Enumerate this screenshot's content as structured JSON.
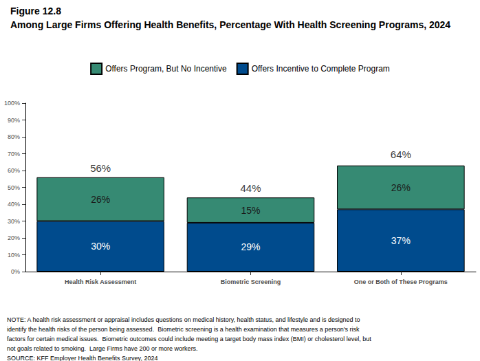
{
  "chart_data": {
    "type": "bar",
    "title": "Figure 12.8",
    "subtitle": "Among Large Firms Offering Health Benefits, Percentage With Health Screening Programs, 2024",
    "categories": [
      "Health Risk Assessment",
      "Biometric Screening",
      "One or Both of These Programs"
    ],
    "series": [
      {
        "name": "Offers Incentive to Complete Program",
        "color": "#004b8d",
        "values": [
          30,
          29,
          37
        ],
        "value_labels": [
          "30%",
          "29%",
          "37%"
        ]
      },
      {
        "name": "Offers Program, But No Incentive",
        "color": "#368a73",
        "values": [
          26,
          15,
          26
        ],
        "value_labels": [
          "26%",
          "15%",
          "26%"
        ]
      }
    ],
    "totals": [
      56,
      44,
      64
    ],
    "total_labels": [
      "56%",
      "44%",
      "64%"
    ],
    "stacked": true,
    "data_labels": true,
    "legend": "top",
    "grid": false,
    "ylim": [
      0,
      100
    ],
    "yticks": [
      {
        "value": 0,
        "label": "0%"
      },
      {
        "value": 10,
        "label": "10%"
      },
      {
        "value": 20,
        "label": "20%"
      },
      {
        "value": 30,
        "label": "30%"
      },
      {
        "value": 40,
        "label": "40%"
      },
      {
        "value": 50,
        "label": "50%"
      },
      {
        "value": 60,
        "label": "60%"
      },
      {
        "value": 70,
        "label": "70%"
      },
      {
        "value": 80,
        "label": "80%"
      },
      {
        "value": 90,
        "label": "90%"
      },
      {
        "value": 100,
        "label": "100%"
      }
    ],
    "annotations": [
      "NOTE: A health risk assessment or appraisal includes questions on medical history, health status, and lifestyle and is designed to identify the health risks of the person being assessed.  Biometric screening is a health examination that measures a person's risk factors for certain medical issues.  Biometric outcomes could include meeting a target body mass index (BMI) or cholesterol level, but not goals related to smoking.  Large Firms have 200 or more workers.",
      "SOURCE: KFF Employer Health Benefits Survey, 2024"
    ]
  }
}
